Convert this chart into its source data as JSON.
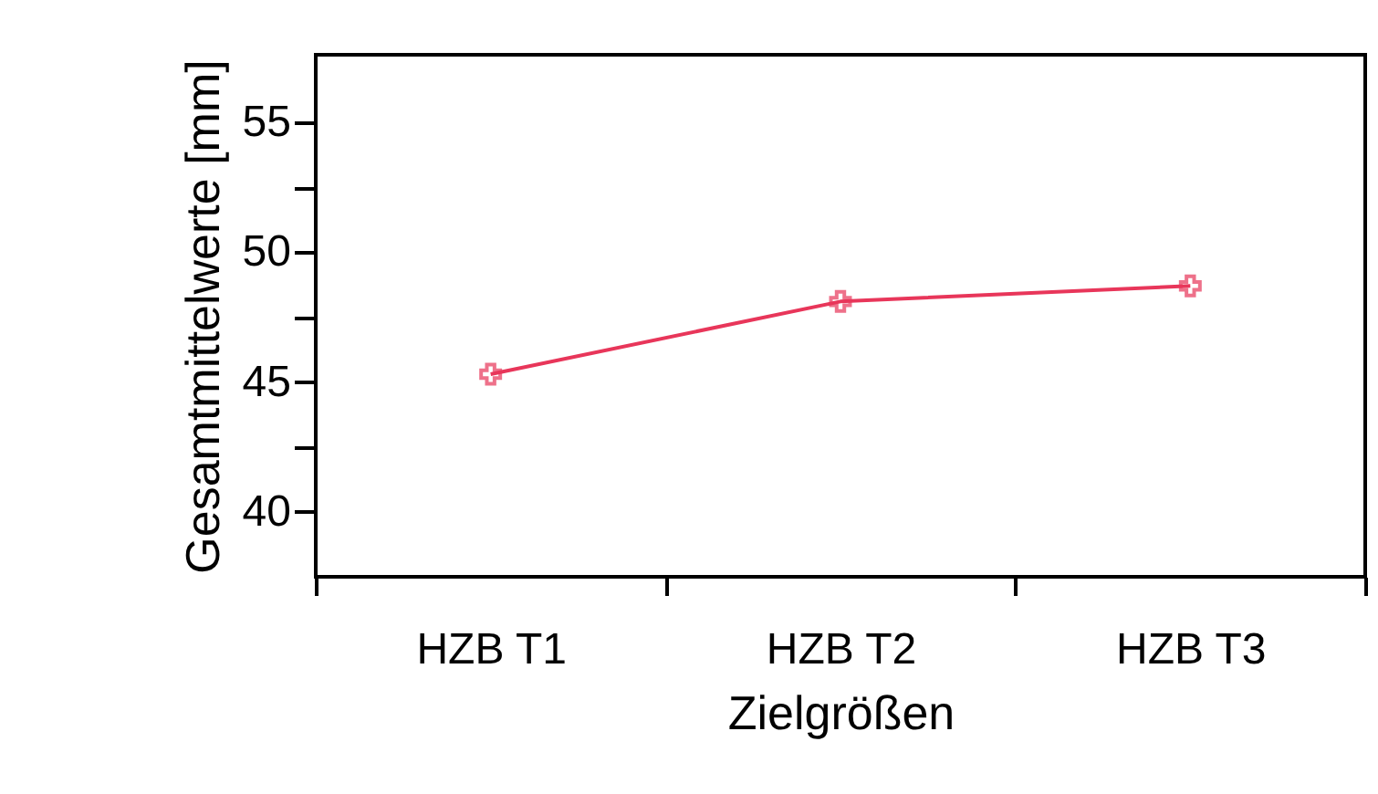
{
  "chart_data": {
    "type": "line",
    "xlabel": "Zielgrößen",
    "ylabel": "Gesamtmittelwerte [mm]",
    "categories": [
      "HZB T1",
      "HZB T2",
      "HZB T3"
    ],
    "series": [
      {
        "color": "#e8365a",
        "values": [
          45.3,
          48.1,
          48.7
        ]
      }
    ],
    "ylim": [
      37.5,
      57.6
    ],
    "yticks": [
      {
        "value": 40,
        "label": "40"
      },
      {
        "value": 42.5,
        "label": null
      },
      {
        "value": 45,
        "label": "45"
      },
      {
        "value": 47.5,
        "label": null
      },
      {
        "value": 50,
        "label": "50"
      },
      {
        "value": 52.5,
        "label": null
      },
      {
        "value": 55,
        "label": "55"
      }
    ],
    "marker": "cross",
    "line_style": "solid",
    "grid": false,
    "legend": false
  }
}
